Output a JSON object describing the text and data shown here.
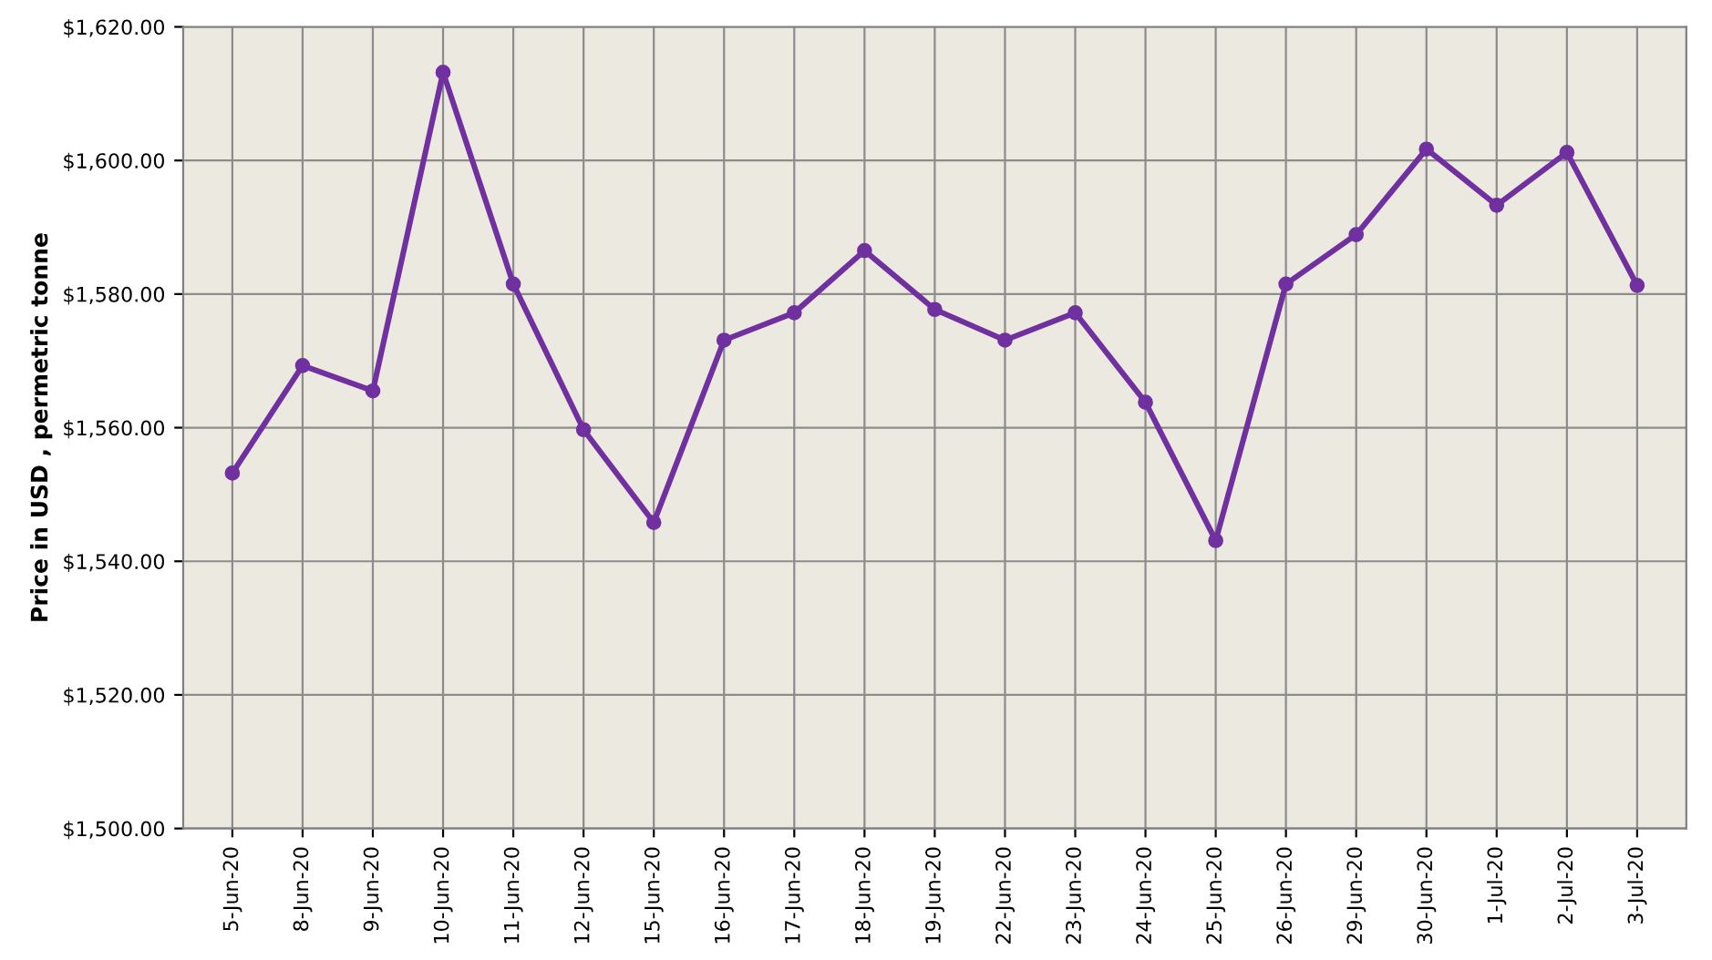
{
  "chart_data": {
    "type": "line",
    "ylabel": "Price in USD , permetric tonne",
    "categories": [
      "5-Jun-20",
      "8-Jun-20",
      "9-Jun-20",
      "10-Jun-20",
      "11-Jun-20",
      "12-Jun-20",
      "15-Jun-20",
      "16-Jun-20",
      "17-Jun-20",
      "18-Jun-20",
      "19-Jun-20",
      "22-Jun-20",
      "23-Jun-20",
      "24-Jun-20",
      "25-Jun-20",
      "26-Jun-20",
      "29-Jun-20",
      "30-Jun-20",
      "1-Jul-20",
      "2-Jul-20",
      "3-Jul-20"
    ],
    "series": [
      {
        "color": "#7030a0",
        "values": [
          1553.2,
          1569.3,
          1565.5,
          1613.2,
          1581.5,
          1559.7,
          1545.8,
          1573.1,
          1577.2,
          1586.5,
          1577.7,
          1573.1,
          1577.2,
          1563.8,
          1543.1,
          1581.5,
          1588.9,
          1601.7,
          1593.3,
          1601.2,
          1581.3
        ]
      }
    ],
    "ylim": [
      1500,
      1620
    ],
    "yticks": [
      {
        "value": 1500,
        "label": "$1,500.00"
      },
      {
        "value": 1520,
        "label": "$1,520.00"
      },
      {
        "value": 1540,
        "label": "$1,540.00"
      },
      {
        "value": 1560,
        "label": "$1,560.00"
      },
      {
        "value": 1580,
        "label": "$1,580.00"
      },
      {
        "value": 1600,
        "label": "$1,600.00"
      },
      {
        "value": 1620,
        "label": "$1,620.00"
      }
    ],
    "grid": true,
    "marker": "circle",
    "line_style": "solid",
    "legend": false
  }
}
